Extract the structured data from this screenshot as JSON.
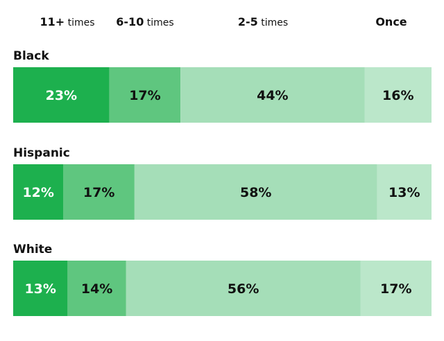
{
  "chart_data": {
    "type": "bar",
    "orientation": "horizontal",
    "stacked": true,
    "normalized": true,
    "legend_position": "top",
    "segment_columns": [
      {
        "name_main": "11+",
        "name_unit": "times",
        "color": "#1db04e",
        "label_color": "#ffffff"
      },
      {
        "name_main": "6-10",
        "name_unit": "times",
        "color": "#5fc67f",
        "label_color": "#111111"
      },
      {
        "name_main": "2-5",
        "name_unit": "times",
        "color": "#a5deb8",
        "label_color": "#111111"
      },
      {
        "name_main": "Once",
        "name_unit": "",
        "color": "#bbe7ca",
        "label_color": "#111111"
      }
    ],
    "categories": [
      "Black",
      "Hispanic",
      "White"
    ],
    "rows": [
      {
        "category": "Black",
        "values": [
          23,
          17,
          44,
          16
        ],
        "labels": [
          "23%",
          "17%",
          "44%",
          "16%"
        ]
      },
      {
        "category": "Hispanic",
        "values": [
          12,
          17,
          58,
          13
        ],
        "labels": [
          "12%",
          "17%",
          "58%",
          "13%"
        ]
      },
      {
        "category": "White",
        "values": [
          13,
          14,
          56,
          17
        ],
        "labels": [
          "13%",
          "14%",
          "56%",
          "17%"
        ]
      }
    ]
  }
}
